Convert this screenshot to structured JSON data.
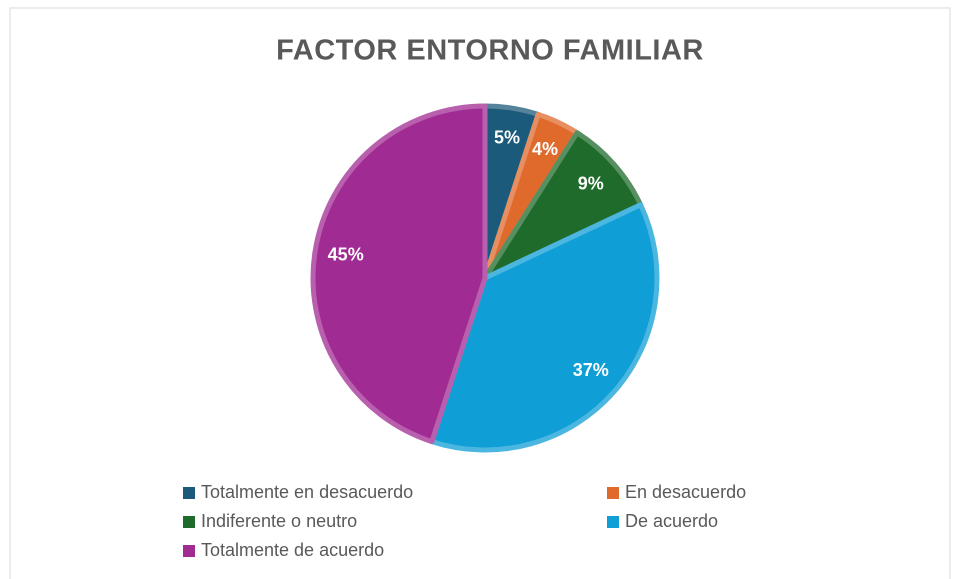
{
  "chart_data": {
    "type": "pie",
    "title": "FACTOR ENTORNO FAMILIAR",
    "categories": [
      "Totalmente en desacuerdo",
      "En desacuerdo",
      "Indiferente o neutro",
      "De acuerdo",
      "Totalmente de acuerdo"
    ],
    "values": [
      5,
      4,
      9,
      37,
      45
    ],
    "value_labels": [
      "5%",
      "4%",
      "9%",
      "37%",
      "45%"
    ],
    "colors": [
      "#1b5a7a",
      "#e06a2c",
      "#1f6b2b",
      "#0f9ed5",
      "#a02b93"
    ],
    "legend": "bottom"
  }
}
